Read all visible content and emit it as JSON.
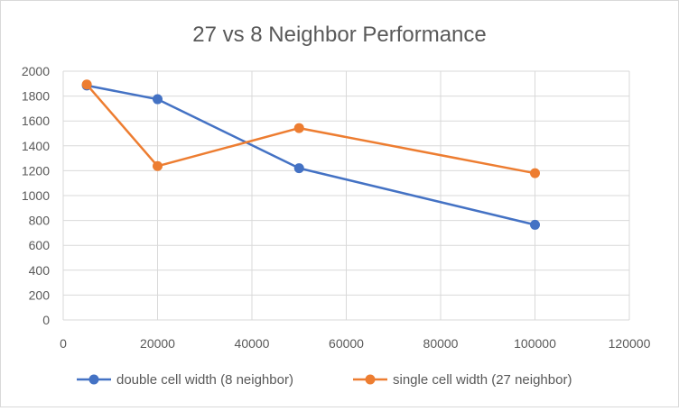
{
  "chart_data": {
    "type": "scatter",
    "title": "27 vs 8 Neighbor Performance",
    "xlabel": "",
    "ylabel": "",
    "xlim": [
      0,
      120000
    ],
    "ylim": [
      0,
      2000
    ],
    "xticks": [
      0,
      20000,
      40000,
      60000,
      80000,
      100000,
      120000
    ],
    "yticks": [
      0,
      200,
      400,
      600,
      800,
      1000,
      1200,
      1400,
      1600,
      1800,
      2000
    ],
    "xtick_labels": [
      "0",
      "20000",
      "40000",
      "60000",
      "80000",
      "100000",
      "120000"
    ],
    "ytick_labels": [
      "0",
      "200",
      "400",
      "600",
      "800",
      "1000",
      "1200",
      "1400",
      "1600",
      "1800",
      "2000"
    ],
    "grid": true,
    "legend_position": "bottom",
    "series": [
      {
        "name": "double cell width (8 neighbor)",
        "color": "#4472C4",
        "x": [
          5000,
          20000,
          50000,
          100000
        ],
        "y": [
          1885,
          1775,
          1220,
          765
        ]
      },
      {
        "name": "single cell width (27 neighbor)",
        "color": "#ED7D31",
        "x": [
          5000,
          20000,
          50000,
          100000
        ],
        "y": [
          1893,
          1237,
          1543,
          1180
        ]
      }
    ]
  }
}
